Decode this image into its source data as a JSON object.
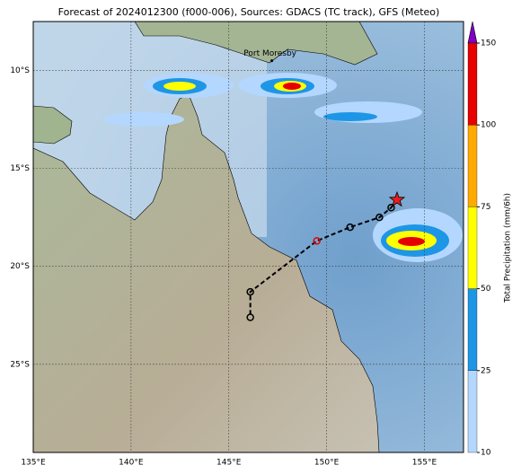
{
  "title": "Forecast of 2024012300 (f000-006), Sources: GDACS (TC track), GFS (Meteo)",
  "map": {
    "xlim": [
      135,
      157
    ],
    "ylim": [
      -29.5,
      -7.5
    ],
    "xticks": [
      {
        "value": 135,
        "label": "135°E"
      },
      {
        "value": 140,
        "label": "140°E"
      },
      {
        "value": 145,
        "label": "145°E"
      },
      {
        "value": 150,
        "label": "150°E"
      },
      {
        "value": 155,
        "label": "155°E"
      }
    ],
    "yticks": [
      {
        "value": -10,
        "label": "10°S"
      },
      {
        "value": -15,
        "label": "15°S"
      },
      {
        "value": -20,
        "label": "20°S"
      },
      {
        "value": -25,
        "label": "25°S"
      }
    ],
    "place": {
      "name": "Port Moresby",
      "lon": 147.2,
      "lat": -9.5
    },
    "track": {
      "lon": [
        153.6,
        153.3,
        152.7,
        151.2,
        149.5,
        146.1,
        146.1
      ],
      "lat": [
        -16.6,
        -17.0,
        -17.5,
        -18.0,
        -18.7,
        -21.3,
        -22.6
      ]
    }
  },
  "colorbar": {
    "label": "Total Precipitation (mm/6h)",
    "levels": [
      10,
      25,
      50,
      75,
      100,
      150
    ],
    "colors": [
      "#b4d7ff",
      "#1e96e6",
      "#ffff00",
      "#ffaa00",
      "#e60000"
    ],
    "extend_color": "#8000c0"
  }
}
